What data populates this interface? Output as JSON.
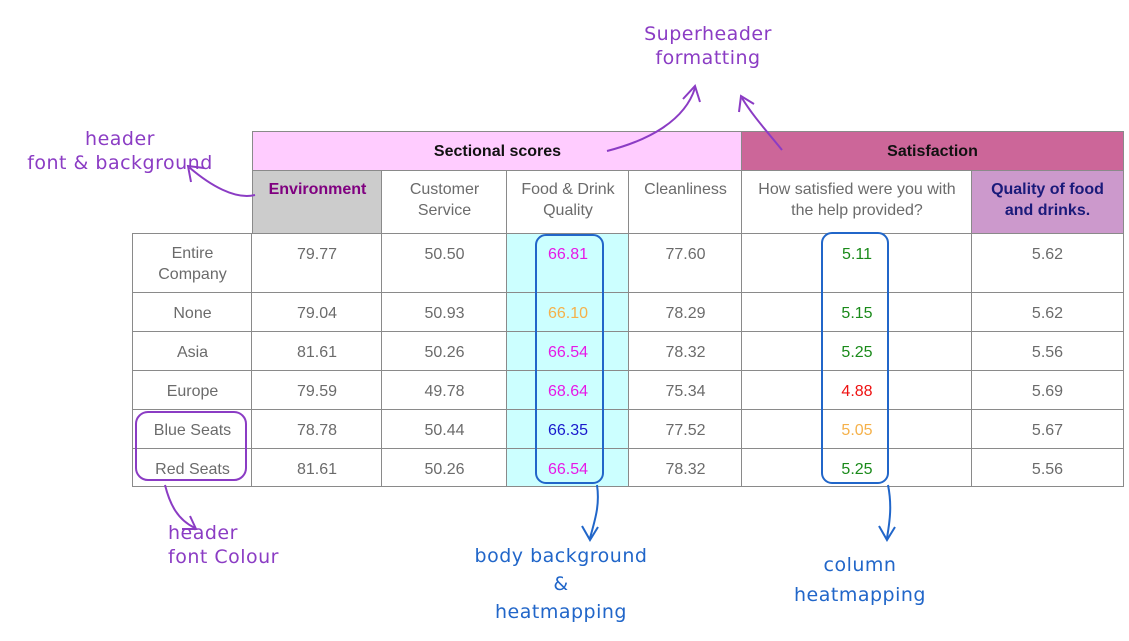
{
  "colors": {
    "sectional_bg": "#ffccff",
    "satisfaction_bg": "#cc6699",
    "environment_bg": "#cccccc",
    "environment_fg": "#800080",
    "quality_bg": "#cc99cc",
    "quality_fg": "#1a1a7a",
    "food_col_bg": "#ccffff",
    "header_row_fg": "#800080",
    "annotation_purple": "#8b3cc4",
    "annotation_blue": "#2166c9"
  },
  "table": {
    "superheaders": [
      {
        "label": "Sectional scores"
      },
      {
        "label": "Satisfaction"
      }
    ],
    "headers": [
      {
        "label": "Environment"
      },
      {
        "label": "Customer Service"
      },
      {
        "label": "Food & Drink Quality"
      },
      {
        "label": "Cleanliness"
      },
      {
        "label": "How satisfied were you with the help provided?"
      },
      {
        "label": "Quality of food and drinks."
      }
    ],
    "rows": [
      {
        "name": "Entire Company",
        "env": "79.77",
        "cs": "50.50",
        "food": "66.81",
        "food_color": "#e619e6",
        "clean": "77.60",
        "help": "5.11",
        "help_color": "#1a8a1a",
        "quality": "5.62"
      },
      {
        "name": "None",
        "env": "79.04",
        "cs": "50.93",
        "food": "66.10",
        "food_color": "#f5b14a",
        "clean": "78.29",
        "help": "5.15",
        "help_color": "#1a8a1a",
        "quality": "5.62"
      },
      {
        "name": "Asia",
        "env": "81.61",
        "cs": "50.26",
        "food": "66.54",
        "food_color": "#e619e6",
        "clean": "78.32",
        "help": "5.25",
        "help_color": "#1a8a1a",
        "quality": "5.56"
      },
      {
        "name": "Europe",
        "env": "79.59",
        "cs": "49.78",
        "food": "68.64",
        "food_color": "#e619e6",
        "clean": "75.34",
        "help": "4.88",
        "help_color": "#ee1111",
        "quality": "5.69"
      },
      {
        "name": "Blue Seats",
        "env": "78.78",
        "cs": "50.44",
        "food": "66.35",
        "food_color": "#1a1acc",
        "clean": "77.52",
        "help": "5.05",
        "help_color": "#f5b14a",
        "quality": "5.67"
      },
      {
        "name": "Red Seats",
        "env": "81.61",
        "cs": "50.26",
        "food": "66.54",
        "food_color": "#e619e6",
        "clean": "78.32",
        "help": "5.25",
        "help_color": "#1a8a1a",
        "quality": "5.56"
      }
    ]
  },
  "annotations": {
    "superheader": "Superheader\nformatting",
    "header_font_bg": "header\nfont & background",
    "header_font_colour": "header\nfont Colour",
    "body_bg": "body background\n&\nheatmapping",
    "column_heatmap": "column\nheatmapping"
  }
}
